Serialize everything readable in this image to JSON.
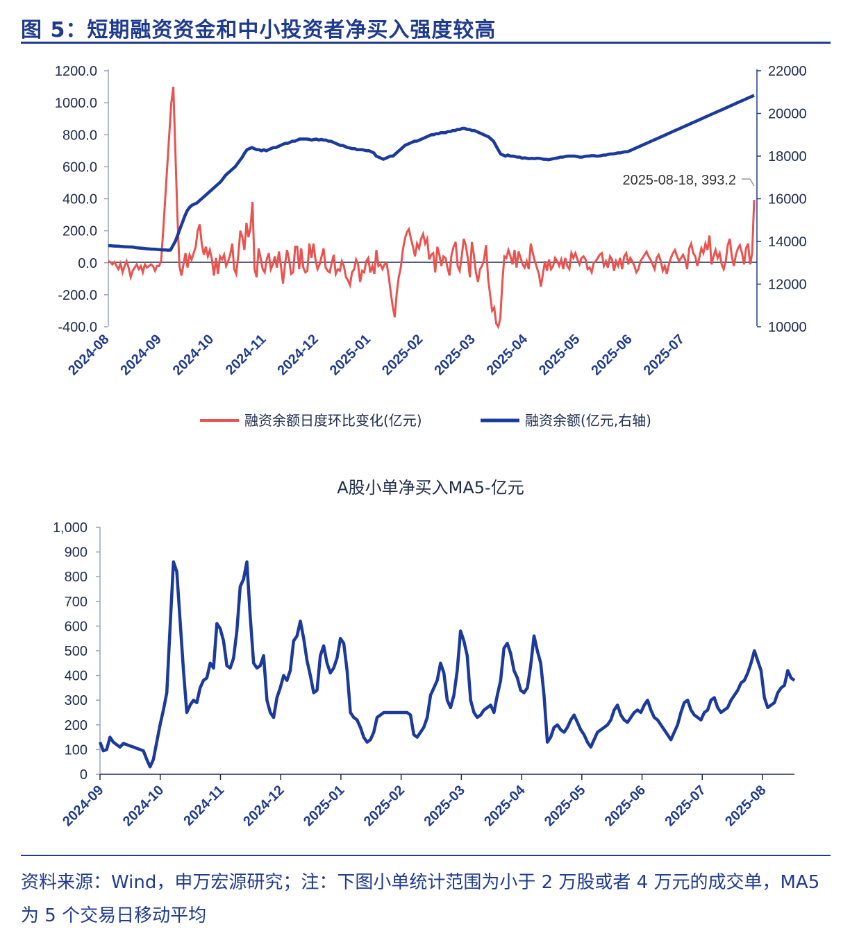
{
  "figure": {
    "title": "图 5：短期融资资金和中小投资者净买入强度较高",
    "source": "资料来源：Wind，申万宏源研究；注：下图小单统计范围为小于 2 万股或者 4 万元的成交单，MA5 为 5 个交易日移动平均",
    "colors": {
      "primary": "#1f3b8f",
      "red_series": "#e8534f",
      "blue_series": "#1b3a9b"
    }
  },
  "chart_data": [
    {
      "type": "line",
      "title": "",
      "x_tick_labels": [
        "2024-08",
        "2024-09",
        "2024-10",
        "2024-11",
        "2024-12",
        "2025-01",
        "2025-02",
        "2025-03",
        "2025-04",
        "2025-05",
        "2025-06",
        "2025-07"
      ],
      "y_left": {
        "ylim": [
          -400,
          1200
        ],
        "ticks": [
          "1200.0",
          "1000.0",
          "800.0",
          "600.0",
          "400.0",
          "200.0",
          "0.0",
          "-200.0",
          "-400.0"
        ]
      },
      "y_right": {
        "ylim": [
          10000,
          22000
        ],
        "ticks": [
          "22000",
          "20000",
          "18000",
          "16000",
          "14000",
          "12000",
          "10000"
        ]
      },
      "annotation": "2025-08-18, 393.2",
      "series": [
        {
          "name": "融资余额日度环比变化(亿元)",
          "axis": "left",
          "color": "#e8534f",
          "values": [
            10,
            5,
            -10,
            5,
            -20,
            -40,
            -5,
            -60,
            -20,
            10,
            -30,
            -90,
            -50,
            -30,
            -10,
            -40,
            -20,
            -60,
            -10,
            -30,
            -20,
            -10,
            -20,
            -50,
            -20,
            -20,
            10,
            200,
            400,
            600,
            800,
            1000,
            1100,
            700,
            300,
            -20,
            -80,
            -10,
            60,
            -30,
            50,
            20,
            60,
            100,
            200,
            240,
            120,
            50,
            100,
            40,
            80,
            20,
            -80,
            30,
            -70,
            40,
            20,
            50,
            -20,
            10,
            50,
            120,
            -40,
            -70,
            50,
            200,
            160,
            80,
            250,
            160,
            220,
            380,
            -40,
            -90,
            90,
            30,
            -40,
            -60,
            20,
            60,
            -40,
            -10,
            40,
            -30,
            70,
            -20,
            -130,
            -10,
            80,
            20,
            -70,
            -60,
            100,
            100,
            -40,
            90,
            -30,
            -60,
            -50,
            120,
            30,
            120,
            20,
            -40,
            -10,
            40,
            90,
            -30,
            -50,
            -60,
            0,
            50,
            -70,
            -40,
            -50,
            10,
            -20,
            -90,
            -110,
            -140,
            -60,
            -40,
            20,
            -10,
            -120,
            -50,
            -60,
            10,
            30,
            -60,
            -20,
            -70,
            80,
            -20,
            -10,
            -40,
            -10,
            0,
            -80,
            -180,
            -270,
            -340,
            -190,
            -90,
            -30,
            80,
            150,
            190,
            210,
            150,
            100,
            40,
            120,
            90,
            150,
            180,
            120,
            150,
            20,
            50,
            60,
            -60,
            100,
            50,
            -20,
            40,
            30,
            -30,
            -80,
            50,
            100,
            130,
            -20,
            -50,
            40,
            150,
            110,
            30,
            -90,
            130,
            50,
            -60,
            -120,
            -40,
            -20,
            20,
            110,
            -100,
            -200,
            -300,
            -280,
            -380,
            -400,
            -350,
            -120,
            40,
            30,
            80,
            40,
            -10,
            80,
            -30,
            70,
            30,
            -10,
            -30,
            10,
            -40,
            120,
            60,
            10,
            -30,
            -70,
            -150,
            -70,
            10,
            -50,
            20,
            -40,
            -20,
            30,
            10,
            -20,
            20,
            -40,
            30,
            -20,
            -40,
            60,
            30,
            60,
            20,
            -10,
            30,
            40,
            20,
            -40,
            -30,
            -60,
            0,
            10,
            30,
            50,
            60,
            -20,
            10,
            -30,
            40,
            20,
            -50,
            10,
            -20,
            30,
            -40,
            40,
            60,
            -10,
            30,
            10,
            -20,
            -60,
            -40,
            10,
            30,
            50,
            70,
            40,
            20,
            -10,
            -40,
            30,
            50,
            10,
            -50,
            -20,
            -70,
            -10,
            30,
            60,
            80,
            40,
            10,
            30,
            50,
            20,
            -40,
            90,
            120,
            60,
            40,
            -20,
            30,
            90,
            60,
            120,
            80,
            170,
            -10,
            40,
            80,
            30,
            60,
            -10,
            -40,
            10,
            110,
            150,
            40,
            -20,
            50,
            90,
            110,
            60,
            -10,
            90,
            120,
            -10,
            60,
            393.2
          ]
        },
        {
          "name": "融资余额(亿元,右轴)",
          "axis": "right",
          "color": "#1b3a9b",
          "values": [
            13800,
            13800,
            13790,
            13780,
            13780,
            13770,
            13760,
            13750,
            13750,
            13740,
            13740,
            13720,
            13700,
            13690,
            13680,
            13670,
            13660,
            13650,
            13640,
            13640,
            13630,
            13620,
            13610,
            13600,
            13600,
            13590,
            13600,
            13800,
            14000,
            14300,
            14600,
            14900,
            15200,
            15450,
            15600,
            15700,
            15750,
            15800,
            15900,
            16000,
            16100,
            16200,
            16300,
            16400,
            16500,
            16600,
            16700,
            16800,
            16950,
            17100,
            17200,
            17300,
            17400,
            17500,
            17650,
            17800,
            17950,
            18150,
            18300,
            18350,
            18400,
            18350,
            18300,
            18300,
            18250,
            18300,
            18250,
            18300,
            18350,
            18400,
            18400,
            18450,
            18500,
            18550,
            18600,
            18600,
            18650,
            18700,
            18700,
            18750,
            18800,
            18800,
            18800,
            18800,
            18780,
            18750,
            18780,
            18800,
            18750,
            18780,
            18750,
            18750,
            18700,
            18700,
            18650,
            18600,
            18550,
            18500,
            18500,
            18450,
            18400,
            18380,
            18350,
            18350,
            18300,
            18300,
            18300,
            18280,
            18250,
            18250,
            18200,
            18150,
            18000,
            17950,
            17900,
            17850,
            17900,
            17950,
            18000,
            18000,
            18100,
            18200,
            18300,
            18400,
            18500,
            18550,
            18600,
            18650,
            18700,
            18700,
            18750,
            18800,
            18850,
            18900,
            18950,
            19000,
            19000,
            19050,
            19050,
            19100,
            19100,
            19100,
            19150,
            19150,
            19200,
            19200,
            19250,
            19250,
            19300,
            19300,
            19250,
            19250,
            19200,
            19200,
            19150,
            19100,
            19050,
            19000,
            18950,
            18900,
            18800,
            18700,
            18500,
            18300,
            18100,
            18050,
            18000,
            18050,
            18000,
            18000,
            17980,
            17950,
            17950,
            17900,
            17920,
            17900,
            17880,
            17900,
            17880,
            17900,
            17900,
            17880,
            17850,
            17850,
            17830,
            17850,
            17880,
            17900,
            17920,
            17950,
            17950,
            17980,
            18000,
            18000,
            18000,
            18000,
            17980,
            17950,
            17950,
            17980,
            18000,
            18000,
            18020,
            18020,
            18000,
            18000,
            18020,
            18050,
            18050,
            18080,
            18100,
            18100,
            18120,
            18150,
            18150,
            18180,
            18200,
            18200,
            18250,
            18300,
            18350,
            18400,
            18450,
            18500,
            18550,
            18600,
            18650,
            18700,
            18750,
            18800,
            18850,
            18900,
            18950,
            19000,
            19050,
            19100,
            19150,
            19200,
            19250,
            19300,
            19350,
            19400,
            19450,
            19500,
            19550,
            19600,
            19650,
            19700,
            19750,
            19800,
            19850,
            19900,
            19950,
            20000,
            20050,
            20100,
            20150,
            20200,
            20250,
            20300,
            20350,
            20400,
            20450,
            20500,
            20550,
            20600,
            20650,
            20700,
            20750,
            20800,
            20850
          ]
        }
      ]
    },
    {
      "type": "line",
      "title": "A股小单净买入MA5-亿元",
      "x_tick_labels": [
        "2024-09",
        "2024-10",
        "2024-11",
        "2024-12",
        "2025-01",
        "2025-02",
        "2025-03",
        "2025-04",
        "2025-05",
        "2025-06",
        "2025-07",
        "2025-08"
      ],
      "ylim": [
        0,
        1000
      ],
      "y_ticks": [
        "1,000",
        "900",
        "800",
        "700",
        "600",
        "500",
        "400",
        "300",
        "200",
        "100",
        "0"
      ],
      "series": [
        {
          "name": "",
          "color": "#1b3a9b",
          "values": [
            130,
            95,
            100,
            150,
            130,
            120,
            110,
            125,
            120,
            115,
            110,
            105,
            100,
            95,
            60,
            30,
            60,
            130,
            200,
            260,
            330,
            600,
            860,
            820,
            620,
            420,
            250,
            280,
            300,
            290,
            350,
            380,
            390,
            450,
            430,
            610,
            590,
            540,
            440,
            430,
            470,
            580,
            760,
            790,
            860,
            640,
            450,
            430,
            440,
            480,
            300,
            250,
            230,
            310,
            350,
            400,
            380,
            420,
            540,
            560,
            620,
            550,
            460,
            400,
            330,
            340,
            480,
            520,
            450,
            410,
            430,
            470,
            550,
            530,
            420,
            250,
            230,
            220,
            190,
            150,
            130,
            140,
            170,
            230,
            240,
            250,
            250,
            250,
            250,
            250,
            250,
            250,
            250,
            240,
            160,
            150,
            170,
            190,
            230,
            320,
            350,
            380,
            450,
            410,
            300,
            270,
            320,
            420,
            580,
            540,
            480,
            300,
            250,
            230,
            240,
            260,
            270,
            280,
            250,
            320,
            380,
            510,
            530,
            490,
            420,
            390,
            340,
            330,
            350,
            440,
            560,
            500,
            450,
            320,
            130,
            150,
            190,
            200,
            180,
            170,
            190,
            220,
            240,
            210,
            180,
            160,
            130,
            110,
            140,
            170,
            180,
            190,
            200,
            220,
            260,
            280,
            240,
            220,
            210,
            230,
            250,
            260,
            250,
            280,
            300,
            260,
            230,
            220,
            200,
            180,
            160,
            140,
            170,
            200,
            250,
            290,
            300,
            260,
            240,
            230,
            220,
            250,
            260,
            300,
            310,
            270,
            250,
            260,
            270,
            300,
            320,
            340,
            370,
            380,
            410,
            450,
            500,
            460,
            420,
            310,
            270,
            280,
            290,
            330,
            350,
            360,
            420,
            390,
            380
          ]
        }
      ]
    }
  ]
}
